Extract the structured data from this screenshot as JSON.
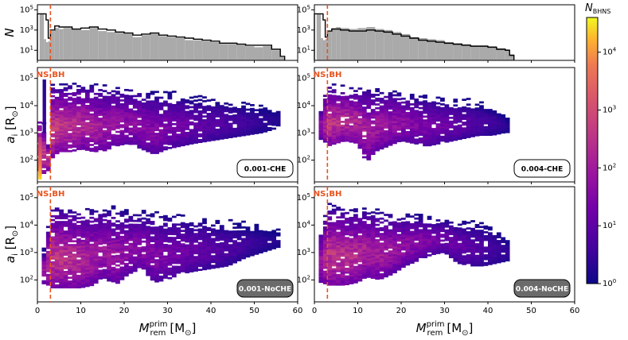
{
  "chart_data": {
    "type": "heatmap",
    "shared": {
      "xlabel": "M_rem^prim [M_⊙]",
      "xlabel_parts": {
        "base": "M",
        "sub": "rem",
        "sup": "prim",
        "unit": "[M",
        "unit_sub": "⊙",
        "unit_end": "]"
      },
      "xlim": [
        0,
        60
      ],
      "xticks": [
        0,
        10,
        20,
        30,
        40,
        50,
        60
      ],
      "hist_ylabel": "N",
      "hist_ylim_log10": [
        0,
        5.5
      ],
      "hist_yticks": [
        {
          "label": "10",
          "exp": "1"
        },
        {
          "label": "10",
          "exp": "3"
        },
        {
          "label": "10",
          "exp": "5"
        }
      ],
      "scatter_ylabel_parts": {
        "base": "a",
        "sub": "i",
        "unit": "[R",
        "unit_sub": "⊙",
        "unit_end": "]"
      },
      "scatter_ylim_log10": [
        1.2,
        5.4
      ],
      "scatter_yticks": [
        {
          "label": "10",
          "exp": "2"
        },
        {
          "label": "10",
          "exp": "3"
        },
        {
          "label": "10",
          "exp": "4"
        },
        {
          "label": "10",
          "exp": "5"
        }
      ],
      "ns_bh_boundary": 3,
      "ns_label": "NS",
      "bh_label": "BH",
      "boundary_color": "#e8531e",
      "hist_fill_color": "#aaaaaa",
      "hist_line_color": "#000000"
    },
    "colorbar": {
      "label": "N",
      "label_sub": "BHNS",
      "log10_range": [
        0,
        4.6
      ],
      "ticks": [
        {
          "label": "10",
          "exp": "0"
        },
        {
          "label": "10",
          "exp": "1"
        },
        {
          "label": "10",
          "exp": "2"
        },
        {
          "label": "10",
          "exp": "3"
        },
        {
          "label": "10",
          "exp": "4"
        }
      ],
      "colormap": "plasma"
    },
    "columns": [
      {
        "hist_grey_log10": [
          [
            0.5,
            4.6
          ],
          [
            1,
            4.6
          ],
          [
            1.5,
            2.1
          ],
          [
            2,
            1.8
          ],
          [
            2.5,
            1.9
          ],
          [
            3,
            2.9
          ],
          [
            4,
            3.2
          ],
          [
            5,
            3.1
          ],
          [
            6,
            3.2
          ],
          [
            8,
            3.1
          ],
          [
            10,
            3.0
          ],
          [
            12,
            3.2
          ],
          [
            14,
            2.9
          ],
          [
            16,
            2.8
          ],
          [
            18,
            2.7
          ],
          [
            20,
            2.6
          ],
          [
            22,
            2.3
          ],
          [
            24,
            2.5
          ],
          [
            26,
            2.6
          ],
          [
            28,
            2.4
          ],
          [
            30,
            2.3
          ],
          [
            32,
            2.2
          ],
          [
            34,
            2.0
          ],
          [
            36,
            2.0
          ],
          [
            38,
            1.9
          ],
          [
            40,
            1.8
          ],
          [
            42,
            1.6
          ],
          [
            44,
            1.6
          ],
          [
            46,
            1.5
          ],
          [
            48,
            1.4
          ],
          [
            50,
            1.3
          ],
          [
            52,
            1.4
          ],
          [
            54,
            1.0
          ],
          [
            56,
            0.3
          ]
        ],
        "hist_outline_log10": [
          [
            0,
            4.6
          ],
          [
            2,
            4.0
          ],
          [
            2.5,
            2.2
          ],
          [
            3,
            3.0
          ],
          [
            4,
            3.4
          ],
          [
            5,
            3.3
          ],
          [
            6,
            3.3
          ],
          [
            8,
            3.1
          ],
          [
            10,
            3.2
          ],
          [
            12,
            3.3
          ],
          [
            14,
            3.1
          ],
          [
            16,
            3.0
          ],
          [
            18,
            2.8
          ],
          [
            20,
            2.7
          ],
          [
            22,
            2.5
          ],
          [
            24,
            2.6
          ],
          [
            26,
            2.7
          ],
          [
            28,
            2.5
          ],
          [
            30,
            2.4
          ],
          [
            32,
            2.3
          ],
          [
            34,
            2.2
          ],
          [
            36,
            2.1
          ],
          [
            38,
            2.0
          ],
          [
            40,
            1.9
          ],
          [
            42,
            1.7
          ],
          [
            44,
            1.7
          ],
          [
            46,
            1.6
          ],
          [
            48,
            1.5
          ],
          [
            50,
            1.5
          ],
          [
            52,
            1.5
          ],
          [
            54,
            1.1
          ],
          [
            56,
            0.4
          ]
        ],
        "hist_xmax": 57,
        "panels": [
          {
            "label": "0.001-CHE",
            "label_style": "light",
            "mass_envelope": [
              [
                0.5,
                1.6,
                3.8,
                3.5
              ],
              [
                1.5,
                1.5,
                3.4,
                3.2
              ],
              [
                2.5,
                1.6,
                2.8,
                3.0
              ],
              [
                3,
                2.0,
                4.9,
                3.2
              ],
              [
                5,
                2.3,
                4.9,
                3.0
              ],
              [
                8,
                2.3,
                4.9,
                2.8
              ],
              [
                10,
                2.4,
                4.9,
                2.7
              ],
              [
                13,
                2.3,
                4.9,
                2.5
              ],
              [
                15,
                2.3,
                4.8,
                2.3
              ],
              [
                18,
                2.5,
                4.8,
                2.2
              ],
              [
                21,
                2.6,
                4.7,
                2.0
              ],
              [
                24,
                2.4,
                4.7,
                1.9
              ],
              [
                27,
                2.2,
                4.6,
                1.8
              ],
              [
                30,
                2.4,
                4.6,
                1.6
              ],
              [
                33,
                2.5,
                4.5,
                1.5
              ],
              [
                36,
                2.6,
                4.4,
                1.3
              ],
              [
                40,
                2.7,
                4.4,
                1.1
              ],
              [
                44,
                2.8,
                4.3,
                0.9
              ],
              [
                48,
                2.9,
                4.2,
                0.7
              ],
              [
                52,
                3.0,
                4.1,
                0.5
              ],
              [
                56,
                3.2,
                4.0,
                0.3
              ]
            ],
            "low_mass_column": [
              [
                0.2,
                1.3,
                2.8,
                4.4
              ],
              [
                1.2,
                3.0,
                4.9,
                0.5
              ]
            ]
          },
          {
            "label": "0.001-NoCHE",
            "label_style": "dark",
            "mass_envelope": [
              [
                1,
                1.8,
                3.0,
                2.2
              ],
              [
                2,
                1.9,
                3.4,
                2.4
              ],
              [
                3,
                1.7,
                4.8,
                3.0
              ],
              [
                5,
                1.7,
                4.8,
                2.9
              ],
              [
                8,
                1.7,
                4.7,
                2.8
              ],
              [
                10,
                1.7,
                4.7,
                2.6
              ],
              [
                13,
                1.8,
                4.7,
                2.4
              ],
              [
                15,
                2.1,
                4.7,
                2.3
              ],
              [
                18,
                1.8,
                4.7,
                2.2
              ],
              [
                21,
                2.2,
                4.6,
                2.0
              ],
              [
                24,
                2.4,
                4.6,
                1.9
              ],
              [
                27,
                1.9,
                4.5,
                1.8
              ],
              [
                30,
                2.0,
                4.5,
                1.6
              ],
              [
                33,
                2.2,
                4.4,
                1.5
              ],
              [
                36,
                2.3,
                4.4,
                1.3
              ],
              [
                40,
                2.4,
                4.3,
                1.1
              ],
              [
                44,
                2.5,
                4.2,
                0.9
              ],
              [
                48,
                2.8,
                4.1,
                0.7
              ],
              [
                52,
                3.0,
                4.0,
                0.5
              ],
              [
                56,
                3.2,
                3.9,
                0.3
              ]
            ],
            "low_mass_column": []
          }
        ]
      },
      {
        "hist_grey_log10": [
          [
            0.5,
            4.6
          ],
          [
            1,
            4.6
          ],
          [
            1.5,
            2.2
          ],
          [
            2,
            2.0
          ],
          [
            2.5,
            2.1
          ],
          [
            3,
            2.9
          ],
          [
            4,
            3.2
          ],
          [
            5,
            3.3
          ],
          [
            6,
            3.2
          ],
          [
            8,
            3.1
          ],
          [
            10,
            3.2
          ],
          [
            12,
            3.3
          ],
          [
            14,
            3.1
          ],
          [
            16,
            3.0
          ],
          [
            18,
            2.8
          ],
          [
            20,
            2.6
          ],
          [
            22,
            2.3
          ],
          [
            24,
            2.2
          ],
          [
            26,
            2.1
          ],
          [
            28,
            2.0
          ],
          [
            30,
            1.8
          ],
          [
            32,
            1.7
          ],
          [
            34,
            1.6
          ],
          [
            36,
            1.5
          ],
          [
            38,
            1.5
          ],
          [
            40,
            1.4
          ],
          [
            42,
            1.2
          ],
          [
            44,
            1.1
          ],
          [
            45,
            0.6
          ]
        ],
        "hist_outline_log10": [
          [
            0,
            4.6
          ],
          [
            2,
            4.0
          ],
          [
            2.5,
            2.3
          ],
          [
            3,
            2.9
          ],
          [
            4,
            3.1
          ],
          [
            5,
            3.1
          ],
          [
            6,
            3.0
          ],
          [
            8,
            2.9
          ],
          [
            10,
            2.9
          ],
          [
            12,
            3.0
          ],
          [
            14,
            2.9
          ],
          [
            16,
            2.8
          ],
          [
            18,
            2.6
          ],
          [
            20,
            2.4
          ],
          [
            22,
            2.2
          ],
          [
            24,
            2.0
          ],
          [
            26,
            1.9
          ],
          [
            28,
            1.8
          ],
          [
            30,
            1.7
          ],
          [
            32,
            1.6
          ],
          [
            34,
            1.5
          ],
          [
            36,
            1.4
          ],
          [
            38,
            1.4
          ],
          [
            40,
            1.3
          ],
          [
            42,
            1.1
          ],
          [
            44,
            1.0
          ],
          [
            45,
            0.5
          ]
        ],
        "hist_xmax": 46,
        "panels": [
          {
            "label": "0.004-CHE",
            "label_style": "light",
            "mass_envelope": [
              [
                1,
                2.7,
                3.8,
                2.0
              ],
              [
                2,
                2.8,
                4.4,
                2.3
              ],
              [
                3,
                2.5,
                4.9,
                3.0
              ],
              [
                5,
                2.6,
                4.9,
                2.9
              ],
              [
                7,
                2.7,
                4.8,
                2.8
              ],
              [
                10,
                2.6,
                4.8,
                2.6
              ],
              [
                12,
                1.9,
                4.8,
                2.4
              ],
              [
                14,
                2.3,
                4.7,
                2.3
              ],
              [
                17,
                2.5,
                4.7,
                2.2
              ],
              [
                20,
                2.7,
                4.6,
                2.0
              ],
              [
                23,
                2.6,
                4.5,
                1.8
              ],
              [
                26,
                2.5,
                4.5,
                1.6
              ],
              [
                29,
                2.6,
                4.4,
                1.5
              ],
              [
                32,
                2.7,
                4.3,
                1.3
              ],
              [
                35,
                2.8,
                4.3,
                1.1
              ],
              [
                38,
                2.9,
                4.2,
                0.9
              ],
              [
                41,
                2.9,
                4.1,
                0.7
              ],
              [
                44,
                3.0,
                3.8,
                0.5
              ],
              [
                45,
                3.0,
                3.6,
                0.3
              ]
            ],
            "low_mass_column": []
          },
          {
            "label": "0.004-NoCHE",
            "label_style": "dark",
            "mass_envelope": [
              [
                1,
                1.9,
                3.8,
                2.2
              ],
              [
                2,
                1.9,
                4.2,
                2.5
              ],
              [
                3,
                1.8,
                4.8,
                3.0
              ],
              [
                5,
                1.8,
                4.8,
                2.9
              ],
              [
                7,
                1.8,
                4.7,
                2.8
              ],
              [
                10,
                1.9,
                4.7,
                2.7
              ],
              [
                12,
                2.1,
                4.7,
                2.5
              ],
              [
                15,
                2.0,
                4.6,
                2.4
              ],
              [
                18,
                2.2,
                4.6,
                2.2
              ],
              [
                21,
                2.5,
                4.5,
                2.0
              ],
              [
                24,
                2.7,
                4.5,
                1.8
              ],
              [
                27,
                2.9,
                4.4,
                1.6
              ],
              [
                30,
                3.0,
                4.4,
                1.5
              ],
              [
                33,
                2.6,
                4.3,
                1.3
              ],
              [
                36,
                2.5,
                4.3,
                1.1
              ],
              [
                39,
                2.5,
                4.2,
                0.9
              ],
              [
                42,
                2.6,
                4.0,
                0.7
              ],
              [
                45,
                2.7,
                3.6,
                0.5
              ]
            ],
            "low_mass_column": []
          }
        ]
      }
    ]
  }
}
